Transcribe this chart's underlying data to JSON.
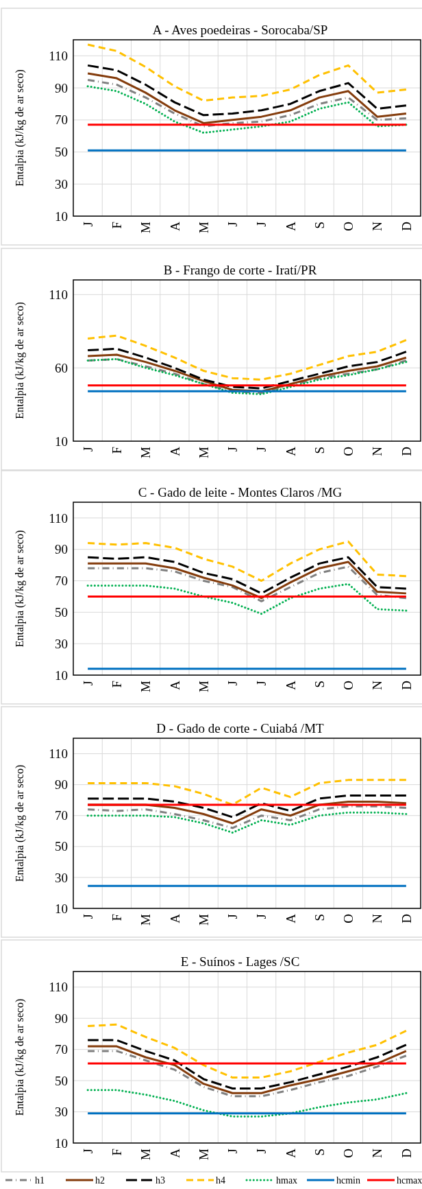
{
  "chart_data": [
    {
      "type": "line",
      "title": "A - Aves poedeiras - Sorocaba/SP",
      "ylabel": "Entalpia (kJ/kg de ar seco)",
      "categories": [
        "J",
        "F",
        "M",
        "A",
        "M",
        "J",
        "J",
        "A",
        "S",
        "O",
        "N",
        "D"
      ],
      "ylim": [
        10,
        120
      ],
      "yticks": [
        10,
        30,
        50,
        70,
        90,
        110
      ],
      "grid": true,
      "series": [
        {
          "color": "#808080",
          "line_style": "dashdot",
          "values": [
            95,
            92,
            84,
            74,
            66,
            68,
            69,
            73,
            80,
            84,
            70,
            71
          ]
        },
        {
          "color": "#843c0c",
          "line_style": "solid",
          "values": [
            99,
            96,
            87,
            76,
            68,
            70,
            72,
            76,
            84,
            88,
            72,
            74
          ]
        },
        {
          "color": "#000000",
          "line_style": "longdash",
          "values": [
            104,
            101,
            92,
            81,
            73,
            74,
            76,
            80,
            88,
            93,
            77,
            79
          ]
        },
        {
          "color": "#ffc000",
          "line_style": "dashed",
          "values": [
            117,
            113,
            103,
            91,
            82,
            84,
            85,
            89,
            98,
            104,
            87,
            89
          ]
        },
        {
          "color": "#00b050",
          "line_style": "dotted",
          "values": [
            91,
            88,
            80,
            69,
            62,
            64,
            66,
            69,
            77,
            81,
            66,
            67
          ]
        },
        {
          "color": "#0070c0",
          "line_style": "solid",
          "values": [
            51,
            51,
            51,
            51,
            51,
            51,
            51,
            51,
            51,
            51,
            51,
            51
          ]
        },
        {
          "color": "#ff0000",
          "line_style": "solid",
          "values": [
            67,
            67,
            67,
            67,
            67,
            67,
            67,
            67,
            67,
            67,
            67,
            67
          ]
        }
      ]
    },
    {
      "type": "line",
      "title": "B - Frango de corte - Iratí/PR",
      "ylabel": "Entalpia (kJ/kg de ar seco)",
      "categories": [
        "J",
        "F",
        "M",
        "A",
        "M",
        "J",
        "J",
        "A",
        "S",
        "O",
        "N",
        "D"
      ],
      "ylim": [
        10,
        120
      ],
      "yticks": [
        10,
        60,
        110
      ],
      "grid": true,
      "series": [
        {
          "color": "#808080",
          "line_style": "dashdot",
          "values": [
            65,
            66,
            61,
            56,
            49,
            44,
            43,
            48,
            53,
            56,
            59,
            65
          ]
        },
        {
          "color": "#843c0c",
          "line_style": "solid",
          "values": [
            68,
            69,
            64,
            58,
            51,
            45,
            44,
            49,
            54,
            58,
            61,
            67
          ]
        },
        {
          "color": "#000000",
          "line_style": "longdash",
          "values": [
            72,
            73,
            67,
            60,
            52,
            47,
            46,
            51,
            56,
            61,
            64,
            71
          ]
        },
        {
          "color": "#ffc000",
          "line_style": "dashed",
          "values": [
            80,
            82,
            75,
            67,
            58,
            53,
            52,
            56,
            62,
            68,
            71,
            79
          ]
        },
        {
          "color": "#00b050",
          "line_style": "dotted",
          "values": [
            65,
            66,
            60,
            55,
            49,
            43,
            42,
            47,
            52,
            55,
            59,
            64
          ]
        },
        {
          "color": "#0070c0",
          "line_style": "solid",
          "values": [
            44,
            44,
            44,
            44,
            44,
            44,
            44,
            44,
            44,
            44,
            44,
            44
          ]
        },
        {
          "color": "#ff0000",
          "line_style": "solid",
          "values": [
            48,
            48,
            48,
            48,
            48,
            48,
            48,
            48,
            48,
            48,
            48,
            48
          ]
        }
      ]
    },
    {
      "type": "line",
      "title": "C - Gado de leite - Montes Claros /MG",
      "ylabel": "Entalpia (kJ/kg de ar seco)",
      "categories": [
        "J",
        "F",
        "M",
        "A",
        "M",
        "J",
        "J",
        "A",
        "S",
        "O",
        "N",
        "D"
      ],
      "ylim": [
        10,
        120
      ],
      "yticks": [
        10,
        30,
        50,
        70,
        90,
        110
      ],
      "grid": true,
      "series": [
        {
          "color": "#808080",
          "line_style": "dashdot",
          "values": [
            78,
            78,
            78,
            76,
            70,
            66,
            57,
            66,
            75,
            79,
            61,
            59
          ]
        },
        {
          "color": "#843c0c",
          "line_style": "solid",
          "values": [
            81,
            81,
            81,
            78,
            72,
            67,
            59,
            69,
            78,
            82,
            63,
            62
          ]
        },
        {
          "color": "#000000",
          "line_style": "longdash",
          "values": [
            85,
            84,
            85,
            82,
            75,
            71,
            62,
            72,
            81,
            85,
            66,
            65
          ]
        },
        {
          "color": "#ffc000",
          "line_style": "dashed",
          "values": [
            94,
            93,
            94,
            91,
            84,
            79,
            70,
            81,
            90,
            95,
            74,
            73
          ]
        },
        {
          "color": "#00b050",
          "line_style": "dotted",
          "values": [
            67,
            67,
            67,
            65,
            60,
            56,
            49,
            59,
            65,
            68,
            52,
            51
          ]
        },
        {
          "color": "#0070c0",
          "line_style": "solid",
          "values": [
            14,
            14,
            14,
            14,
            14,
            14,
            14,
            14,
            14,
            14,
            14,
            14
          ]
        },
        {
          "color": "#ff0000",
          "line_style": "solid",
          "values": [
            60,
            60,
            60,
            60,
            60,
            60,
            60,
            60,
            60,
            60,
            60,
            60
          ]
        }
      ]
    },
    {
      "type": "line",
      "title": "D - Gado de corte - Cuiabá /MT",
      "ylabel": "Entalpia (kJ/kg de ar seco)",
      "categories": [
        "J",
        "F",
        "M",
        "A",
        "M",
        "J",
        "J",
        "A",
        "S",
        "O",
        "N",
        "D"
      ],
      "ylim": [
        10,
        120
      ],
      "yticks": [
        10,
        30,
        50,
        70,
        90,
        110
      ],
      "grid": true,
      "series": [
        {
          "color": "#808080",
          "line_style": "dashdot",
          "values": [
            74,
            73,
            74,
            71,
            67,
            62,
            70,
            67,
            74,
            76,
            76,
            75
          ]
        },
        {
          "color": "#843c0c",
          "line_style": "solid",
          "values": [
            77,
            77,
            77,
            75,
            71,
            65,
            74,
            70,
            77,
            79,
            79,
            78
          ]
        },
        {
          "color": "#000000",
          "line_style": "longdash",
          "values": [
            81,
            81,
            81,
            79,
            75,
            69,
            78,
            73,
            81,
            83,
            83,
            83
          ]
        },
        {
          "color": "#ffc000",
          "line_style": "dashed",
          "values": [
            91,
            91,
            91,
            89,
            84,
            77,
            88,
            82,
            91,
            93,
            93,
            93
          ]
        },
        {
          "color": "#00b050",
          "line_style": "dotted",
          "values": [
            70,
            70,
            70,
            69,
            65,
            59,
            67,
            64,
            70,
            72,
            72,
            71
          ]
        },
        {
          "color": "#0070c0",
          "line_style": "solid",
          "values": [
            24.5,
            24.5,
            24.5,
            24.5,
            24.5,
            24.5,
            24.5,
            24.5,
            24.5,
            24.5,
            24.5,
            24.5
          ]
        },
        {
          "color": "#ff0000",
          "line_style": "solid",
          "values": [
            77,
            77,
            77,
            77,
            77,
            77,
            77,
            77,
            77,
            77,
            77,
            77
          ]
        }
      ]
    },
    {
      "type": "line",
      "title": "E - Suínos - Lages /SC",
      "ylabel": "Entalpia (kJ/kg de ar seco)",
      "categories": [
        "J",
        "F",
        "M",
        "A",
        "M",
        "J",
        "J",
        "A",
        "S",
        "O",
        "N",
        "D"
      ],
      "ylim": [
        10,
        120
      ],
      "yticks": [
        10,
        30,
        50,
        70,
        90,
        110
      ],
      "grid": true,
      "legend": "bottom",
      "series": [
        {
          "name": "h1",
          "color": "#808080",
          "line_style": "dashdot",
          "values": [
            69,
            69,
            63,
            57,
            46,
            40,
            40,
            44,
            49,
            53,
            59,
            66
          ]
        },
        {
          "name": "h2",
          "color": "#843c0c",
          "line_style": "solid",
          "values": [
            72,
            72,
            65,
            60,
            48,
            42,
            42,
            47,
            51,
            56,
            61,
            69
          ]
        },
        {
          "name": "h3",
          "color": "#000000",
          "line_style": "longdash",
          "values": [
            76,
            76,
            69,
            63,
            51,
            45,
            45,
            49,
            54,
            59,
            65,
            73
          ]
        },
        {
          "name": "h4",
          "color": "#ffc000",
          "line_style": "dashed",
          "values": [
            85,
            86,
            78,
            71,
            60,
            52,
            52,
            56,
            62,
            68,
            73,
            82
          ]
        },
        {
          "name": "hmax",
          "color": "#00b050",
          "line_style": "dotted",
          "values": [
            44,
            44,
            41,
            37,
            31,
            27,
            27,
            29,
            33,
            36,
            38,
            42
          ]
        },
        {
          "name": "hcmin",
          "color": "#0070c0",
          "line_style": "solid",
          "values": [
            29,
            29,
            29,
            29,
            29,
            29,
            29,
            29,
            29,
            29,
            29,
            29
          ]
        },
        {
          "name": "hcmax",
          "color": "#ff0000",
          "line_style": "solid",
          "values": [
            61,
            61,
            61,
            61,
            61,
            61,
            61,
            61,
            61,
            61,
            61,
            61
          ]
        }
      ]
    }
  ]
}
